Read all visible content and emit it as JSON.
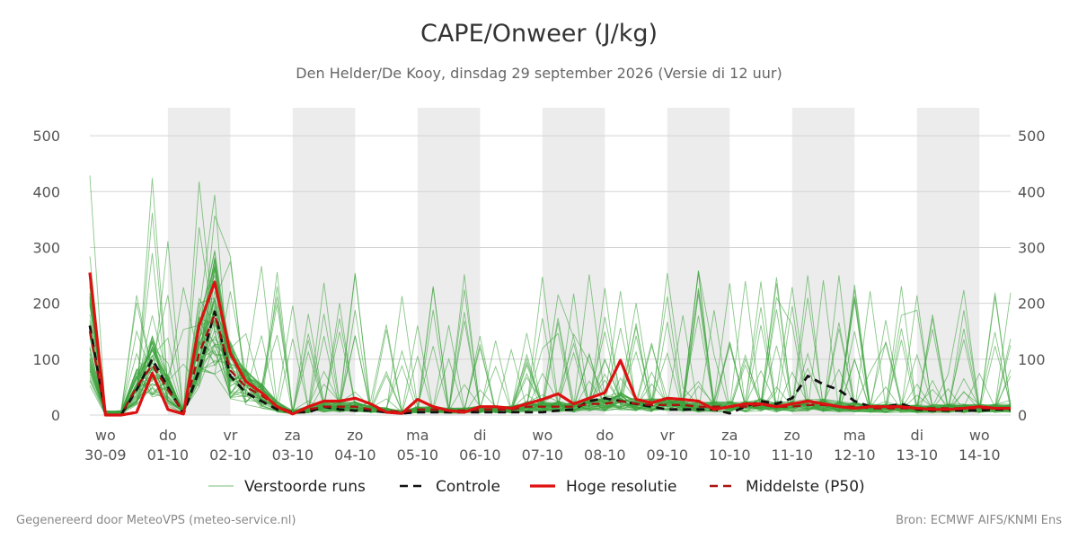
{
  "chart_data": {
    "type": "line",
    "title": "CAPE/Onweer (J/kg)",
    "subtitle": "Den Helder/De Kooy, dinsdag 29 september 2026 (Versie di 12 uur)",
    "ylim": [
      0,
      550
    ],
    "y_ticks": [
      0,
      100,
      200,
      300,
      400,
      500
    ],
    "x_range_days": [
      -0.25,
      14.5
    ],
    "shaded_days": [
      1,
      3,
      5,
      7,
      9,
      11,
      13
    ],
    "x_ticks": [
      {
        "day": 0,
        "weekday": "wo",
        "date": "30-09"
      },
      {
        "day": 1,
        "weekday": "do",
        "date": "01-10"
      },
      {
        "day": 2,
        "weekday": "vr",
        "date": "02-10"
      },
      {
        "day": 3,
        "weekday": "za",
        "date": "03-10"
      },
      {
        "day": 4,
        "weekday": "zo",
        "date": "04-10"
      },
      {
        "day": 5,
        "weekday": "ma",
        "date": "05-10"
      },
      {
        "day": 6,
        "weekday": "di",
        "date": "06-10"
      },
      {
        "day": 7,
        "weekday": "wo",
        "date": "07-10"
      },
      {
        "day": 8,
        "weekday": "do",
        "date": "08-10"
      },
      {
        "day": 9,
        "weekday": "vr",
        "date": "09-10"
      },
      {
        "day": 10,
        "weekday": "za",
        "date": "10-10"
      },
      {
        "day": 11,
        "weekday": "zo",
        "date": "11-10"
      },
      {
        "day": 12,
        "weekday": "ma",
        "date": "12-10"
      },
      {
        "day": 13,
        "weekday": "di",
        "date": "13-10"
      },
      {
        "day": 14,
        "weekday": "wo",
        "date": "14-10"
      }
    ],
    "x": [
      -0.25,
      0,
      0.25,
      0.5,
      0.75,
      1,
      1.25,
      1.5,
      1.75,
      2,
      2.25,
      2.5,
      2.75,
      3,
      3.25,
      3.5,
      3.75,
      4,
      4.25,
      4.5,
      4.75,
      5,
      5.25,
      5.5,
      5.75,
      6,
      6.25,
      6.5,
      6.75,
      7,
      7.25,
      7.5,
      7.75,
      8,
      8.25,
      8.5,
      8.75,
      9,
      9.25,
      9.5,
      9.75,
      10,
      10.25,
      10.5,
      10.75,
      11,
      11.25,
      11.5,
      11.75,
      12,
      12.25,
      12.5,
      12.75,
      13,
      13.25,
      13.5,
      13.75,
      14,
      14.25,
      14.5
    ],
    "legend": {
      "placement": "bottom",
      "items": [
        {
          "label": "Verstoorde runs",
          "color": "#3aa13a",
          "style": "thin"
        },
        {
          "label": "Controle",
          "color": "#111111",
          "style": "dashed"
        },
        {
          "label": "Hoge resolutie",
          "color": "#dd1111",
          "style": "solid-thick"
        },
        {
          "label": "Middelste (P50)",
          "color": "#aa1111",
          "style": "dashed"
        }
      ]
    },
    "series": [
      {
        "name": "Controle",
        "color": "#111111",
        "values": [
          160,
          0,
          0,
          45,
          100,
          50,
          2,
          80,
          185,
          70,
          40,
          25,
          10,
          5,
          5,
          15,
          10,
          8,
          8,
          5,
          3,
          5,
          5,
          5,
          5,
          5,
          5,
          5,
          5,
          5,
          8,
          10,
          25,
          30,
          25,
          20,
          15,
          10,
          10,
          10,
          10,
          3,
          15,
          25,
          20,
          30,
          70,
          55,
          45,
          25,
          15,
          15,
          20,
          10,
          8,
          8,
          8,
          8,
          10,
          10
        ]
      },
      {
        "name": "Hoge resolutie",
        "color": "#dd1111",
        "values": [
          255,
          0,
          0,
          5,
          75,
          10,
          2,
          160,
          238,
          110,
          60,
          40,
          15,
          2,
          15,
          25,
          25,
          30,
          20,
          5,
          3,
          28,
          15,
          8,
          5,
          15,
          15,
          12,
          20,
          28,
          38,
          20,
          30,
          40,
          98,
          28,
          22,
          30,
          28,
          25,
          10,
          15,
          20,
          20,
          15,
          20,
          25,
          20,
          15,
          12,
          15,
          15,
          15,
          12,
          10,
          10,
          12,
          15,
          12,
          12
        ]
      },
      {
        "name": "Middelste (P50)",
        "color": "#aa1111",
        "values": [
          150,
          0,
          0,
          50,
          90,
          45,
          5,
          110,
          180,
          80,
          50,
          35,
          15,
          5,
          10,
          15,
          15,
          15,
          10,
          8,
          5,
          10,
          10,
          8,
          8,
          10,
          10,
          10,
          15,
          15,
          15,
          15,
          20,
          20,
          25,
          20,
          18,
          18,
          18,
          15,
          15,
          15,
          15,
          18,
          15,
          15,
          18,
          18,
          15,
          15,
          12,
          12,
          12,
          12,
          12,
          12,
          12,
          12,
          12,
          12
        ]
      }
    ]
  },
  "footer": {
    "left": "Gegenereerd door MeteoVPS (meteo-service.nl)",
    "right": "Bron: ECMWF AIFS/KNMI Ens"
  }
}
